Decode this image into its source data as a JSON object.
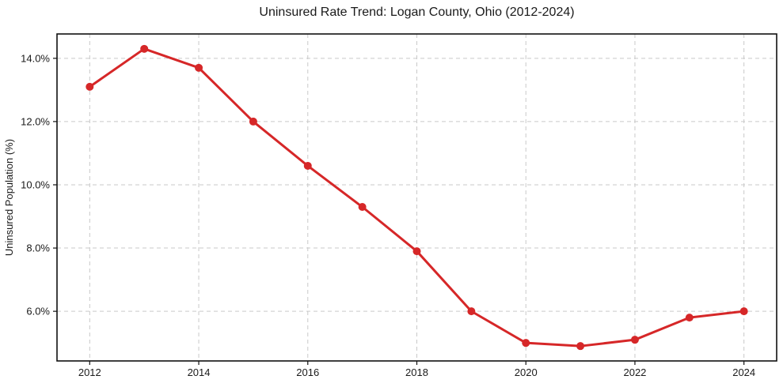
{
  "chart_data": {
    "type": "line",
    "title": "Uninsured Rate Trend: Logan County, Ohio (2012-2024)",
    "xlabel": "",
    "ylabel": "Uninsured Population (%)",
    "x": [
      2012,
      2013,
      2014,
      2015,
      2016,
      2017,
      2018,
      2019,
      2020,
      2021,
      2022,
      2023,
      2024
    ],
    "values": [
      13.1,
      14.3,
      13.7,
      12.0,
      10.6,
      9.3,
      7.9,
      6.0,
      5.0,
      4.9,
      5.1,
      5.8,
      6.0
    ],
    "xticks": [
      2012,
      2014,
      2016,
      2018,
      2020,
      2022,
      2024
    ],
    "xtick_labels": [
      "2012",
      "2014",
      "2016",
      "2018",
      "2020",
      "2022",
      "2024"
    ],
    "yticks": [
      6,
      8,
      10,
      12,
      14
    ],
    "ytick_labels": [
      "6.0%",
      "8.0%",
      "10.0%",
      "12.0%",
      "14.0%"
    ],
    "xlim": [
      2011.4,
      2024.6
    ],
    "ylim": [
      4.43,
      14.77
    ],
    "grid": true,
    "grid_style": "dashed",
    "legend": "none",
    "line_color": "#d62728",
    "marker": "circle",
    "marker_radius": 5,
    "line_width": 3,
    "grid_color": "#c9c9c9",
    "axis_color": "#111111",
    "text_color": "#1a1a1a",
    "background": "#ffffff"
  }
}
